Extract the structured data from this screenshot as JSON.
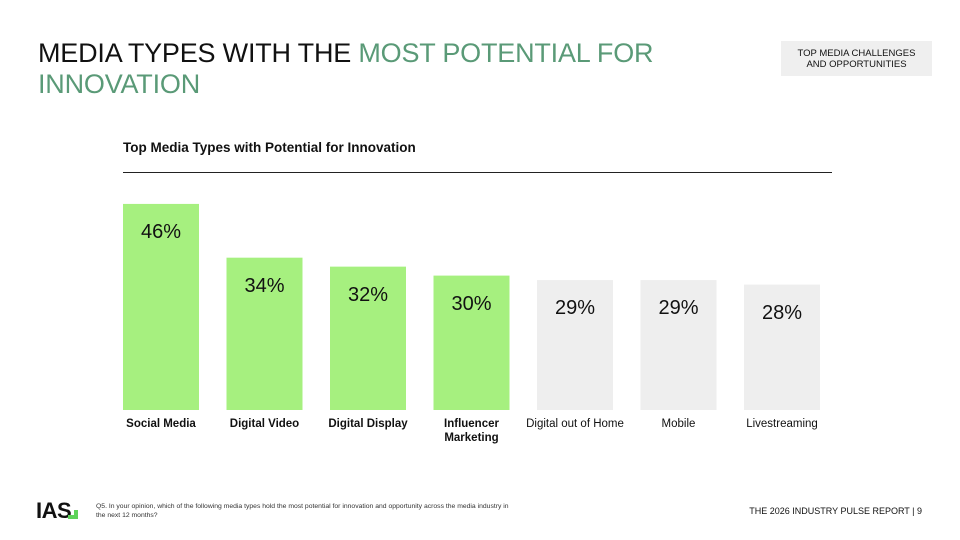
{
  "header": {
    "title_part1": "MEDIA TYPES WITH THE ",
    "title_accent": "MOST POTENTIAL FOR INNOVATION",
    "section_tag": "TOP MEDIA CHALLENGES AND OPPORTUNITIES"
  },
  "colors": {
    "accent_title": "#5a9a77",
    "bar_highlight": "#a6f07f",
    "bar_muted": "#eeeeee"
  },
  "chart_data": {
    "type": "bar",
    "title": "Top Media Types with Potential for Innovation",
    "categories": [
      "Social Media",
      "Digital Video",
      "Digital Display",
      "Influencer Marketing",
      "Digital out of Home",
      "Mobile",
      "Livestreaming"
    ],
    "values": [
      46,
      34,
      32,
      30,
      29,
      29,
      28
    ],
    "value_labels": [
      "46%",
      "34%",
      "32%",
      "30%",
      "29%",
      "29%",
      "28%"
    ],
    "highlighted": [
      true,
      true,
      true,
      true,
      false,
      false,
      false
    ],
    "category_bold": [
      true,
      true,
      true,
      true,
      false,
      false,
      false
    ],
    "xlabel": "",
    "ylabel": "",
    "grid": false,
    "legend": "none"
  },
  "footer": {
    "logo_text": "IAS",
    "footnote": "Q5. In your opinion, which of the following media types hold the most potential for innovation and opportunity across the media industry in the next 12 months?",
    "report_label": "THE 2026 INDUSTRY PULSE REPORT  |  9"
  }
}
